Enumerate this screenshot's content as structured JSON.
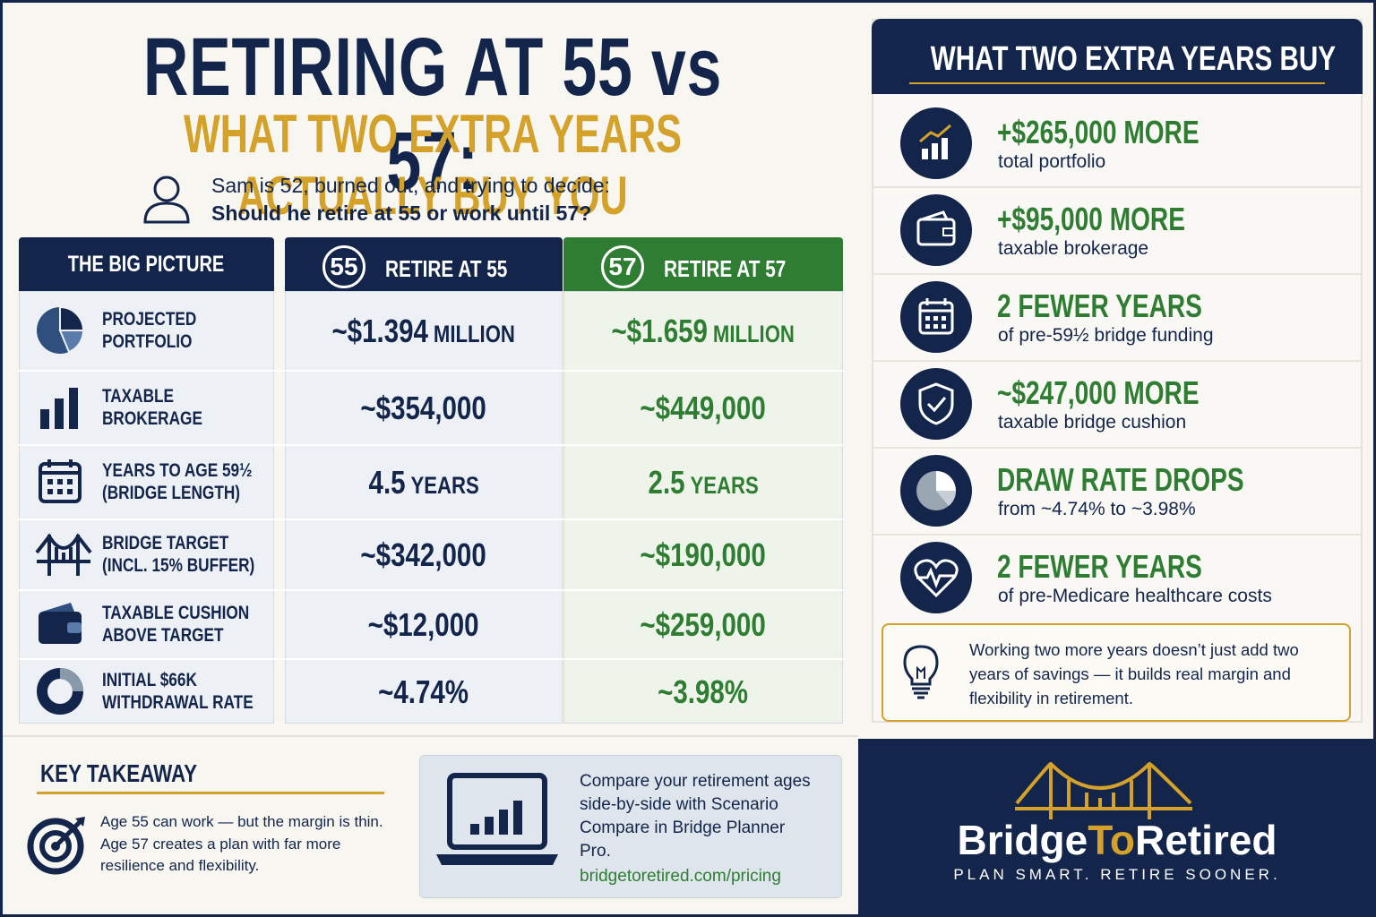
{
  "header": {
    "title": "RETIRING AT 55 vs 57:",
    "subtitle": "WHAT TWO EXTRA YEARS ACTUALLY BUY YOU",
    "intro": [
      "Sam is 52, burned out, and trying to decide:",
      "Should he retire at 55 or work until 57?"
    ]
  },
  "table": {
    "header_label": "THE BIG PICTURE",
    "columns": [
      {
        "badge": "55",
        "label": "RETIRE AT 55"
      },
      {
        "badge": "57",
        "label": "RETIRE AT 57"
      }
    ],
    "rows": [
      {
        "label": [
          "PROJECTED",
          "PORTFOLIO"
        ],
        "values": [
          {
            "amount": "~$1.394",
            "unit": "MILLION"
          },
          {
            "amount": "~$1.659",
            "unit": "MILLION"
          }
        ]
      },
      {
        "label": [
          "TAXABLE",
          "BROKERAGE"
        ],
        "values": [
          {
            "amount": "~$354,000"
          },
          {
            "amount": "~$449,000"
          }
        ]
      },
      {
        "label": [
          "YEARS TO AGE 59½",
          "(BRIDGE LENGTH)"
        ],
        "values": [
          {
            "amount": "4.5",
            "unit": "YEARS"
          },
          {
            "amount": "2.5",
            "unit": "YEARS"
          }
        ]
      },
      {
        "label": [
          "BRIDGE TARGET",
          "(INCL. 15% BUFFER)"
        ],
        "values": [
          {
            "amount": "~$342,000"
          },
          {
            "amount": "~$190,000"
          }
        ]
      },
      {
        "label": [
          "TAXABLE CUSHION",
          "ABOVE TARGET"
        ],
        "values": [
          {
            "amount": "~$12,000"
          },
          {
            "amount": "~$259,000"
          }
        ]
      },
      {
        "label": [
          "INITIAL $66K",
          "WITHDRAWAL RATE"
        ],
        "values": [
          {
            "amount": "~4.74%"
          },
          {
            "amount": "~3.98%"
          }
        ]
      }
    ]
  },
  "sidebar": {
    "title": "WHAT TWO EXTRA YEARS BUY",
    "items": [
      {
        "headline": "+$265,000 MORE",
        "detail": "total portfolio"
      },
      {
        "headline": "+$95,000 MORE",
        "detail": "taxable brokerage"
      },
      {
        "headline": "2 FEWER YEARS",
        "detail": "of pre-59½ bridge funding"
      },
      {
        "headline": "~$247,000 MORE",
        "detail": "taxable bridge cushion"
      },
      {
        "headline": "DRAW RATE DROPS",
        "detail": "from ~4.74% to ~3.98%"
      },
      {
        "headline": "2 FEWER YEARS",
        "detail": "of pre-Medicare healthcare costs"
      }
    ],
    "note": [
      "Working two more years doesn’t just add two",
      "years of savings — it builds real margin and",
      "flexibility in retirement."
    ]
  },
  "takeaway": {
    "title": "KEY TAKEAWAY",
    "lines": [
      "Age 55 can work — but the margin is thin.",
      "Age 57 creates a plan with far more",
      "resilience and flexibility."
    ]
  },
  "promo": {
    "lines": [
      "Compare your retirement ages",
      "side-by-side with Scenario",
      "Compare in Bridge Planner",
      "Pro."
    ],
    "link": "bridgetoretired.com/pricing"
  },
  "brand": {
    "name": [
      "Bridge",
      "To",
      "Retired"
    ],
    "tagline": "PLAN SMART. RETIRE SOONER."
  }
}
